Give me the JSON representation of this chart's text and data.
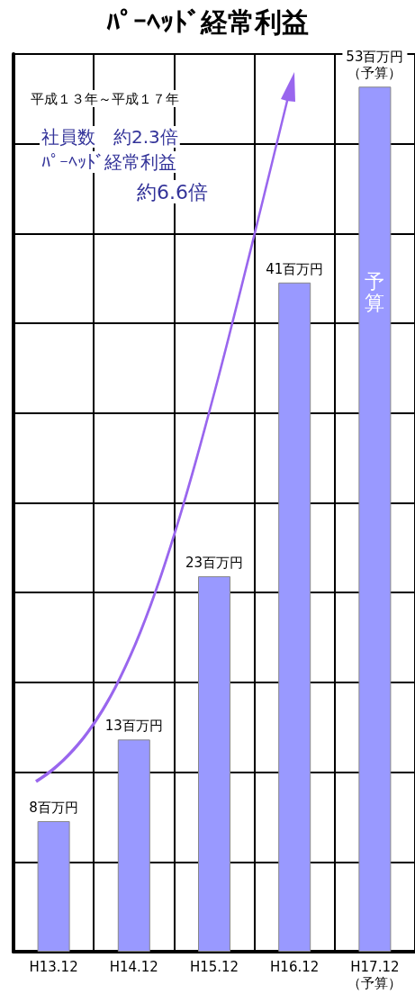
{
  "chart_data": {
    "type": "bar",
    "title": "ﾊﾟｰﾍｯﾄﾞ経常利益",
    "categories": [
      "H13.12",
      "H14.12",
      "H15.12",
      "H16.12",
      "H17.12（予算）"
    ],
    "values": [
      8,
      13,
      23,
      41,
      53
    ],
    "value_labels": [
      "8百万円",
      "13百万円",
      "23百万円",
      "41百万円",
      "53百万円（予算）"
    ],
    "color": "#9999ff",
    "ylim": [
      0,
      55
    ],
    "yticks": [
      {
        "value": 0,
        "label": null
      },
      {
        "value": 5.5,
        "label": null
      },
      {
        "value": 11,
        "label": null
      },
      {
        "value": 16.5,
        "label": null
      },
      {
        "value": 22,
        "label": null
      },
      {
        "value": 27.5,
        "label": null
      },
      {
        "value": 33,
        "label": null
      },
      {
        "value": 38.5,
        "label": null
      },
      {
        "value": 44,
        "label": null
      },
      {
        "value": 49.5,
        "label": null
      },
      {
        "value": 55,
        "label": null
      }
    ],
    "tick_labels": "x",
    "grid": true,
    "annotations": [
      "平成１３年～平成１７年",
      "社員数　約2.3倍",
      "ﾊﾟｰﾍｯﾄﾞ経常利益",
      "約6.6倍",
      "予算"
    ]
  }
}
